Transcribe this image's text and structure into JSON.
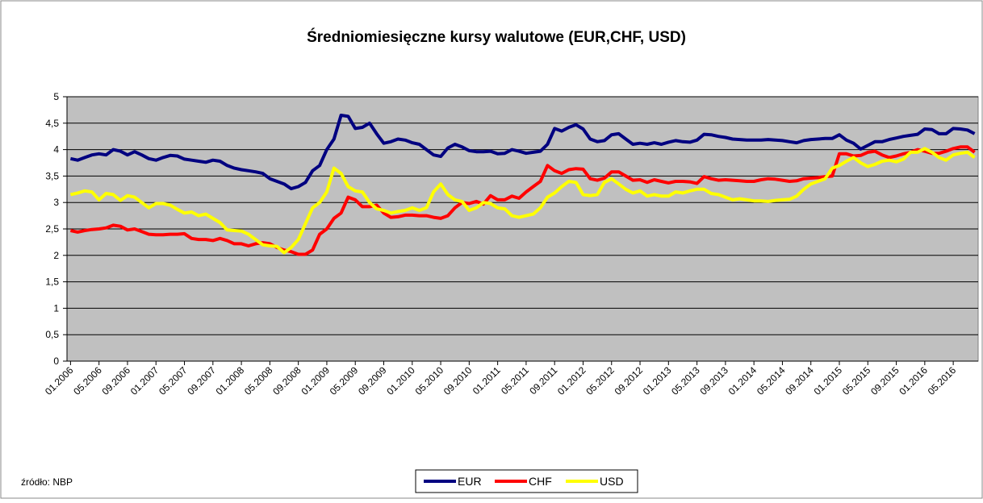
{
  "chart_data": {
    "type": "line",
    "title": "Średniomiesięczne kursy walutowe (EUR,CHF, USD)",
    "source": "źródło: NBP",
    "categories": [
      "01.2006",
      null,
      null,
      null,
      "05.2006",
      null,
      null,
      null,
      "09.2006",
      null,
      null,
      null,
      "01.2007",
      null,
      null,
      null,
      "05.2007",
      null,
      null,
      null,
      "09.2007",
      null,
      null,
      null,
      "01.2008",
      null,
      null,
      null,
      "05.2008",
      null,
      null,
      null,
      "09.2008",
      null,
      null,
      null,
      "01.2009",
      null,
      null,
      null,
      "05.2009",
      null,
      null,
      null,
      "09.2009",
      null,
      null,
      null,
      "01.2010",
      null,
      null,
      null,
      "05.2010",
      null,
      null,
      null,
      "09.2010",
      null,
      null,
      null,
      "01.2011",
      null,
      null,
      null,
      "05.2011",
      null,
      null,
      null,
      "09.2011",
      null,
      null,
      null,
      "01.2012",
      null,
      null,
      null,
      "05.2012",
      null,
      null,
      null,
      "09.2012",
      null,
      null,
      null,
      "01.2013",
      null,
      null,
      null,
      "05.2013",
      null,
      null,
      null,
      "09.2013",
      null,
      null,
      null,
      "01.2014",
      null,
      null,
      null,
      "05.2014",
      null,
      null,
      null,
      "09.2014",
      null,
      null,
      null,
      "01.2015",
      null,
      null,
      null,
      "05.2015",
      null,
      null,
      null,
      "09.2015",
      null,
      null,
      null,
      "01.2016",
      null,
      null,
      null,
      "05.2016",
      null,
      null,
      null
    ],
    "series": [
      {
        "name": "EUR",
        "color": "#000080",
        "values": [
          3.83,
          3.8,
          3.85,
          3.9,
          3.92,
          3.9,
          4.0,
          3.97,
          3.9,
          3.96,
          3.9,
          3.83,
          3.8,
          3.85,
          3.89,
          3.88,
          3.82,
          3.8,
          3.78,
          3.76,
          3.8,
          3.78,
          3.7,
          3.65,
          3.62,
          3.6,
          3.58,
          3.55,
          3.45,
          3.4,
          3.35,
          3.26,
          3.3,
          3.38,
          3.6,
          3.7,
          4.0,
          4.2,
          4.65,
          4.63,
          4.4,
          4.42,
          4.5,
          4.3,
          4.12,
          4.15,
          4.2,
          4.18,
          4.13,
          4.1,
          4.0,
          3.9,
          3.87,
          4.03,
          4.1,
          4.05,
          3.98,
          3.96,
          3.96,
          3.97,
          3.92,
          3.93,
          4.0,
          3.97,
          3.93,
          3.95,
          3.97,
          4.1,
          4.4,
          4.35,
          4.42,
          4.47,
          4.39,
          4.2,
          4.15,
          4.17,
          4.28,
          4.3,
          4.2,
          4.1,
          4.12,
          4.1,
          4.13,
          4.1,
          4.14,
          4.17,
          4.15,
          4.14,
          4.18,
          4.29,
          4.28,
          4.25,
          4.23,
          4.2,
          4.19,
          4.18,
          4.18,
          4.18,
          4.19,
          4.18,
          4.17,
          4.15,
          4.13,
          4.17,
          4.19,
          4.2,
          4.21,
          4.21,
          4.28,
          4.18,
          4.12,
          4.01,
          4.08,
          4.15,
          4.15,
          4.19,
          4.22,
          4.25,
          4.27,
          4.29,
          4.39,
          4.38,
          4.3,
          4.3,
          4.4,
          4.39,
          4.37,
          4.3
        ]
      },
      {
        "name": "CHF",
        "color": "#ff0000",
        "values": [
          2.47,
          2.44,
          2.47,
          2.49,
          2.5,
          2.52,
          2.57,
          2.55,
          2.48,
          2.5,
          2.45,
          2.4,
          2.39,
          2.39,
          2.4,
          2.4,
          2.41,
          2.32,
          2.3,
          2.3,
          2.28,
          2.32,
          2.28,
          2.22,
          2.22,
          2.18,
          2.22,
          2.24,
          2.22,
          2.15,
          2.1,
          2.07,
          2.02,
          2.02,
          2.1,
          2.4,
          2.5,
          2.7,
          2.8,
          3.1,
          3.05,
          2.92,
          2.92,
          2.95,
          2.8,
          2.72,
          2.73,
          2.76,
          2.76,
          2.75,
          2.75,
          2.72,
          2.7,
          2.75,
          2.9,
          3.0,
          2.98,
          3.02,
          2.97,
          3.13,
          3.05,
          3.05,
          3.12,
          3.08,
          3.2,
          3.3,
          3.4,
          3.7,
          3.6,
          3.55,
          3.62,
          3.64,
          3.63,
          3.45,
          3.42,
          3.46,
          3.58,
          3.58,
          3.5,
          3.42,
          3.43,
          3.38,
          3.43,
          3.4,
          3.37,
          3.4,
          3.4,
          3.39,
          3.36,
          3.49,
          3.45,
          3.42,
          3.43,
          3.42,
          3.41,
          3.4,
          3.4,
          3.43,
          3.45,
          3.44,
          3.42,
          3.4,
          3.41,
          3.45,
          3.46,
          3.47,
          3.49,
          3.5,
          3.92,
          3.92,
          3.88,
          3.89,
          3.95,
          3.97,
          3.9,
          3.85,
          3.88,
          3.92,
          3.95,
          4.0,
          3.97,
          3.93,
          3.93,
          3.97,
          4.02,
          4.05,
          4.05,
          3.95
        ]
      },
      {
        "name": "USD",
        "color": "#ffff00",
        "values": [
          3.15,
          3.18,
          3.22,
          3.2,
          3.05,
          3.17,
          3.15,
          3.04,
          3.13,
          3.1,
          3.0,
          2.9,
          2.98,
          2.98,
          2.95,
          2.87,
          2.8,
          2.82,
          2.75,
          2.78,
          2.7,
          2.62,
          2.48,
          2.47,
          2.46,
          2.4,
          2.3,
          2.2,
          2.18,
          2.17,
          2.05,
          2.15,
          2.3,
          2.6,
          2.9,
          3.0,
          3.2,
          3.65,
          3.55,
          3.3,
          3.22,
          3.2,
          3.0,
          2.88,
          2.85,
          2.8,
          2.83,
          2.85,
          2.9,
          2.85,
          2.9,
          3.2,
          3.35,
          3.15,
          3.05,
          3.02,
          2.85,
          2.9,
          3.0,
          2.98,
          2.9,
          2.88,
          2.75,
          2.72,
          2.75,
          2.78,
          2.9,
          3.1,
          3.18,
          3.3,
          3.4,
          3.38,
          3.15,
          3.13,
          3.15,
          3.38,
          3.45,
          3.35,
          3.25,
          3.18,
          3.22,
          3.12,
          3.15,
          3.12,
          3.12,
          3.2,
          3.18,
          3.22,
          3.25,
          3.25,
          3.17,
          3.15,
          3.1,
          3.05,
          3.07,
          3.05,
          3.03,
          3.03,
          3.02,
          3.04,
          3.05,
          3.06,
          3.12,
          3.25,
          3.35,
          3.4,
          3.45,
          3.65,
          3.7,
          3.78,
          3.85,
          3.75,
          3.68,
          3.72,
          3.78,
          3.8,
          3.77,
          3.82,
          3.95,
          3.95,
          4.02,
          3.95,
          3.85,
          3.8,
          3.9,
          3.93,
          3.95,
          3.85
        ]
      }
    ],
    "ylim": [
      0,
      5
    ],
    "yticks": [
      0,
      {
        "value": 0.5,
        "label": "0,5"
      },
      1,
      {
        "value": 1.5,
        "label": "1,5"
      },
      2,
      {
        "value": 2.5,
        "label": "2,5"
      },
      3,
      {
        "value": 3.5,
        "label": "3,5"
      },
      4,
      {
        "value": 4.5,
        "label": "4,5"
      },
      5
    ],
    "grid": true,
    "legend": "bottom"
  }
}
